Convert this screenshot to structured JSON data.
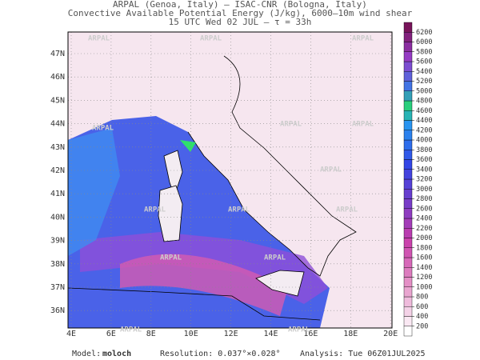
{
  "header": {
    "lines": [
      "ARPAL (Genoa, Italy)  —  ISAC-CNR (Bologna, Italy)",
      "Convective Available Potential Energy (J/kg), 6000–10m wind shear",
      "15 UTC Wed 02 JUL  —  τ = 33h"
    ]
  },
  "map": {
    "watermark": "ARPAL",
    "lat_labels": [
      "47N",
      "46N",
      "45N",
      "44N",
      "43N",
      "42N",
      "41N",
      "40N",
      "39N",
      "38N",
      "37N",
      "36N"
    ],
    "lon_labels": [
      "4E",
      "6E",
      "8E",
      "10E",
      "12E",
      "14E",
      "16E",
      "18E",
      "20E"
    ]
  },
  "colorbar": {
    "levels": [
      200,
      400,
      600,
      800,
      1000,
      1200,
      1400,
      1600,
      1800,
      2000,
      2200,
      2400,
      2600,
      2800,
      3000,
      3200,
      3400,
      3600,
      3800,
      4000,
      4200,
      4400,
      4600,
      4800,
      5000,
      5200,
      5400,
      5600,
      5800,
      6000,
      6200
    ]
  },
  "footer": {
    "model_label": "Model:",
    "model": "moloch",
    "resolution": "Resolution: 0.037°×0.028°",
    "analysis": "Analysis: Tue 06Z01JUL2025"
  }
}
